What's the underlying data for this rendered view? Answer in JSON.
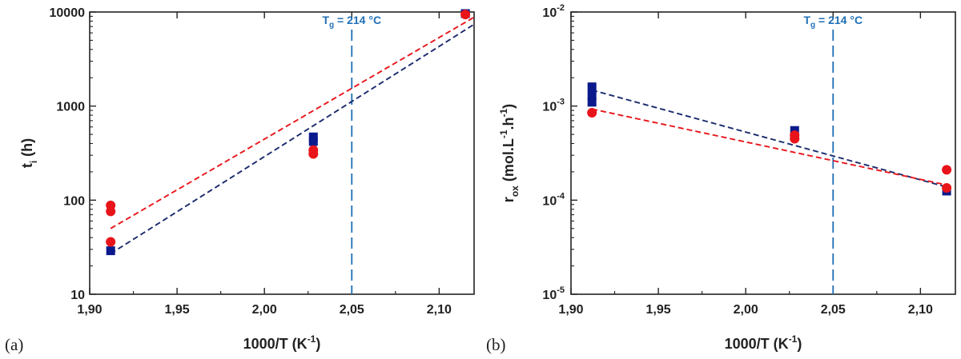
{
  "chart_data": [
    {
      "type": "scatter",
      "panel": "(a)",
      "xlabel": "1000/T (K",
      "xlabel_sup": "-1",
      "xlabel_end": ")",
      "ylabel": "t",
      "ylabel_sub": "i",
      "ylabel_end": " (h)",
      "xlim": [
        1.9,
        2.12
      ],
      "ylim": [
        10,
        10000
      ],
      "yscale": "log",
      "xticks": [
        1.9,
        1.95,
        2.0,
        2.05,
        2.1
      ],
      "xtick_labels": [
        "1,90",
        "1,95",
        "2,00",
        "2,05",
        "2,10"
      ],
      "yticks": [
        10,
        100,
        1000,
        10000
      ],
      "ytick_labels": [
        "10",
        "100",
        "1000",
        "10000"
      ],
      "vline": {
        "x": 2.05,
        "label_main": "T",
        "label_sub": "g",
        "label_rest": " = 214 °C",
        "color": "#1f6fb5"
      },
      "series": [
        {
          "marker": "square",
          "color": "#0a1a8c",
          "points": [
            [
              1.912,
              29
            ],
            [
              2.028,
              420
            ],
            [
              2.028,
              470
            ],
            [
              2.115,
              9800
            ],
            [
              2.115,
              10000
            ]
          ],
          "fit": {
            "x": [
              1.912,
              2.12
            ],
            "y": [
              27,
              7400
            ],
            "color": "#1a2a6c"
          }
        },
        {
          "marker": "circle",
          "color": "#e8141a",
          "points": [
            [
              1.912,
              36
            ],
            [
              1.912,
              76
            ],
            [
              1.912,
              88
            ],
            [
              2.028,
              310
            ],
            [
              2.028,
              340
            ],
            [
              2.115,
              9400
            ]
          ],
          "fit": {
            "x": [
              1.912,
              2.12
            ],
            "y": [
              50,
              8800
            ],
            "color": "#e8141a"
          }
        }
      ]
    },
    {
      "type": "scatter",
      "panel": "(b)",
      "xlabel": "1000/T (K",
      "xlabel_sup": "-1",
      "xlabel_end": ")",
      "ylabel": "r",
      "ylabel_sub": "ox",
      "ylabel_end": " (mol.L",
      "ylabel_sup1": "-1",
      "ylabel_mid": ".h",
      "ylabel_sup2": "-1",
      "ylabel_close": ")",
      "xlim": [
        1.9,
        2.12
      ],
      "ylim": [
        1e-05,
        0.01
      ],
      "yscale": "log",
      "xticks": [
        1.9,
        1.95,
        2.0,
        2.05,
        2.1
      ],
      "xtick_labels": [
        "1,90",
        "1,95",
        "2,00",
        "2,05",
        "2,10"
      ],
      "yticks": [
        1e-05,
        0.0001,
        0.001,
        0.01
      ],
      "ytick_base": "10",
      "ytick_exps": [
        "-5",
        "-4",
        "-3",
        "-2"
      ],
      "vline": {
        "x": 2.05,
        "label_main": "T",
        "label_sub": "g",
        "label_rest": " = 214 °C",
        "color": "#1f6fb5"
      },
      "series": [
        {
          "marker": "square",
          "color": "#0a1a8c",
          "points": [
            [
              1.912,
              0.0016
            ],
            [
              1.912,
              0.0013
            ],
            [
              1.912,
              0.0011
            ],
            [
              2.028,
              0.00055
            ],
            [
              2.115,
              0.000125
            ]
          ],
          "fit": {
            "x": [
              1.912,
              2.115
            ],
            "y": [
              0.00148,
              0.000138
            ],
            "color": "#1a2a6c"
          }
        },
        {
          "marker": "circle",
          "color": "#e8141a",
          "points": [
            [
              1.912,
              0.00085
            ],
            [
              2.028,
              0.00049
            ],
            [
              2.028,
              0.00045
            ],
            [
              2.115,
              0.00021
            ],
            [
              2.115,
              0.000135
            ]
          ],
          "fit": {
            "x": [
              1.912,
              2.115
            ],
            "y": [
              0.00093,
              0.000145
            ],
            "color": "#e8141a"
          }
        }
      ]
    }
  ]
}
